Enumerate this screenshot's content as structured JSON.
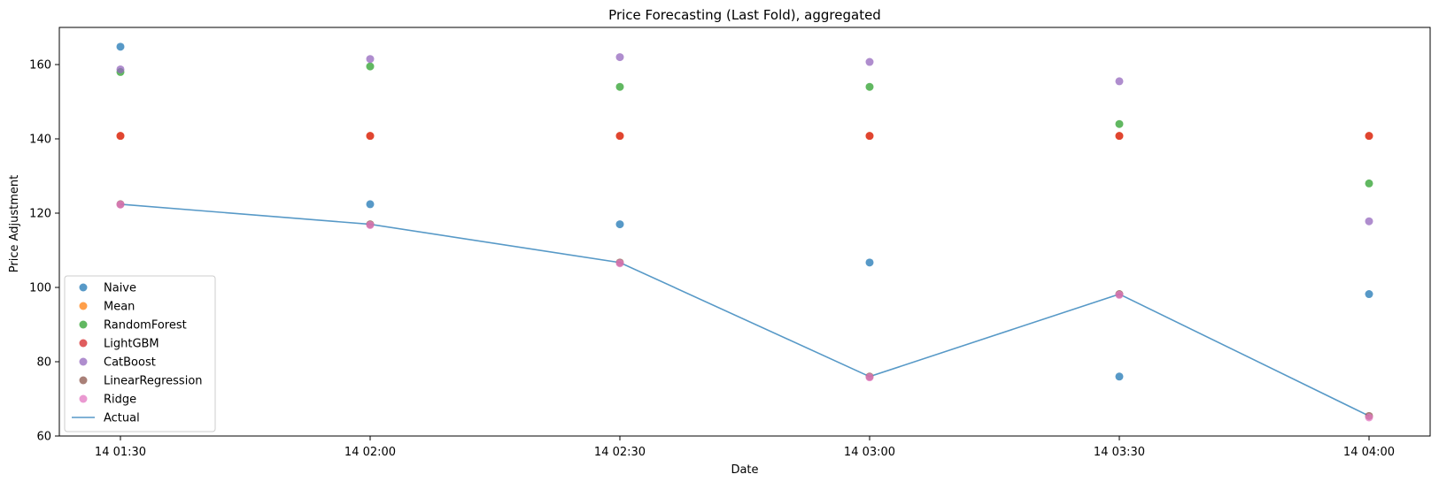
{
  "chart_data": {
    "type": "scatter",
    "title": "Price Forecasting (Last Fold), aggregated",
    "xlabel": "Date",
    "ylabel": "Price Adjustment",
    "categories": [
      "14 01:30",
      "14 02:00",
      "14 02:30",
      "14 03:00",
      "14 03:30",
      "14 04:00"
    ],
    "ylim": [
      60,
      170
    ],
    "yticks": [
      60,
      80,
      100,
      120,
      140,
      160
    ],
    "grid": false,
    "legend_position": "lower-left",
    "series": [
      {
        "name": "Naive",
        "kind": "scatter",
        "color": "#1f77b4",
        "values": [
          164.8,
          122.4,
          117.0,
          106.7,
          76.0,
          98.2
        ]
      },
      {
        "name": "Mean",
        "kind": "scatter",
        "color": "#ff7f0e",
        "values": [
          140.8,
          140.8,
          140.8,
          140.8,
          140.8,
          140.8
        ]
      },
      {
        "name": "RandomForest",
        "kind": "scatter",
        "color": "#2ca02c",
        "values": [
          158.0,
          159.5,
          154.0,
          154.0,
          144.0,
          128.0
        ]
      },
      {
        "name": "LightGBM",
        "kind": "scatter",
        "color": "#d62728",
        "values": [
          140.8,
          140.8,
          140.8,
          140.8,
          140.8,
          140.8
        ]
      },
      {
        "name": "CatBoost",
        "kind": "scatter",
        "color": "#9467bd",
        "values": [
          158.7,
          161.5,
          162.0,
          160.7,
          155.5,
          117.8
        ]
      },
      {
        "name": "LinearRegression",
        "kind": "scatter",
        "color": "#8c564b",
        "values": [
          122.4,
          117.0,
          106.7,
          76.0,
          98.2,
          65.4
        ]
      },
      {
        "name": "Ridge",
        "kind": "scatter",
        "color": "#e377c2",
        "values": [
          122.3,
          116.8,
          106.5,
          75.8,
          98.0,
          65.0
        ]
      },
      {
        "name": "Actual",
        "kind": "line",
        "color": "#1f77b4",
        "values": [
          122.4,
          117.0,
          106.7,
          76.0,
          98.2,
          65.4
        ]
      }
    ]
  }
}
